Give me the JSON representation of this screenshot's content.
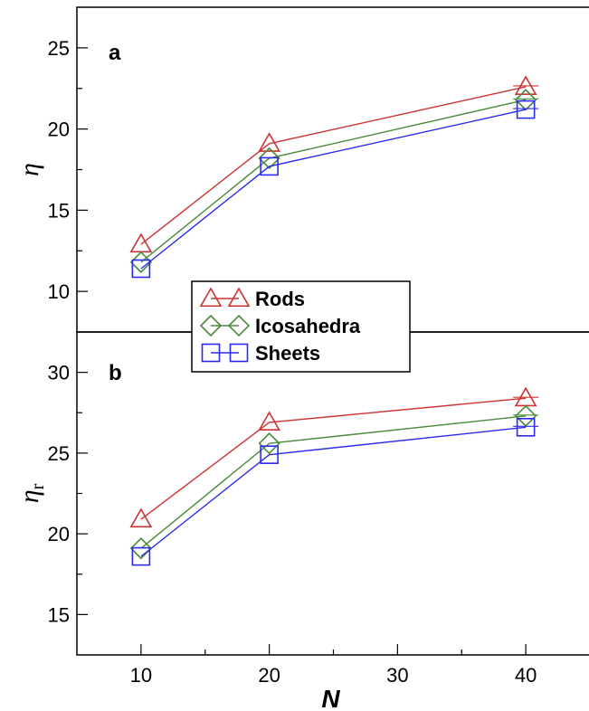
{
  "chart_data": [
    {
      "panel": "a",
      "type": "line",
      "ylabel": "η",
      "x": [
        10,
        20,
        40
      ],
      "xlim": [
        5,
        45
      ],
      "ylim": [
        7.5,
        27.5
      ],
      "yticks": [
        10,
        15,
        20,
        25
      ],
      "series": [
        {
          "name": "Rods",
          "color": "#cc3333",
          "marker": "triangle",
          "values": [
            12.9,
            19.1,
            22.6
          ]
        },
        {
          "name": "Icosahedra",
          "color": "#4a8a3a",
          "marker": "diamond",
          "values": [
            11.8,
            18.2,
            21.8
          ]
        },
        {
          "name": "Sheets",
          "color": "#2a2aee",
          "marker": "square",
          "values": [
            11.4,
            17.7,
            21.2
          ]
        }
      ]
    },
    {
      "panel": "b",
      "type": "line",
      "ylabel": "η",
      "ylabel_sub": "r",
      "xlabel": "N",
      "x": [
        10,
        20,
        40
      ],
      "xlim": [
        5,
        45
      ],
      "xticks": [
        10,
        20,
        30,
        40
      ],
      "ylim": [
        12.5,
        32.5
      ],
      "yticks": [
        15,
        20,
        25,
        30
      ],
      "series": [
        {
          "name": "Rods",
          "color": "#cc3333",
          "marker": "triangle",
          "values": [
            20.9,
            26.9,
            28.4
          ]
        },
        {
          "name": "Icosahedra",
          "color": "#4a8a3a",
          "marker": "diamond",
          "values": [
            19.1,
            25.6,
            27.3
          ]
        },
        {
          "name": "Sheets",
          "color": "#2a2aee",
          "marker": "square",
          "values": [
            18.6,
            24.9,
            26.6
          ]
        }
      ]
    }
  ],
  "legend": {
    "placement": "center",
    "items": [
      {
        "label": "Rods",
        "color": "#cc3333",
        "marker": "triangle"
      },
      {
        "label": "Icosahedra",
        "color": "#4a8a3a",
        "marker": "diamond"
      },
      {
        "label": "Sheets",
        "color": "#2a2aee",
        "marker": "square"
      }
    ]
  }
}
